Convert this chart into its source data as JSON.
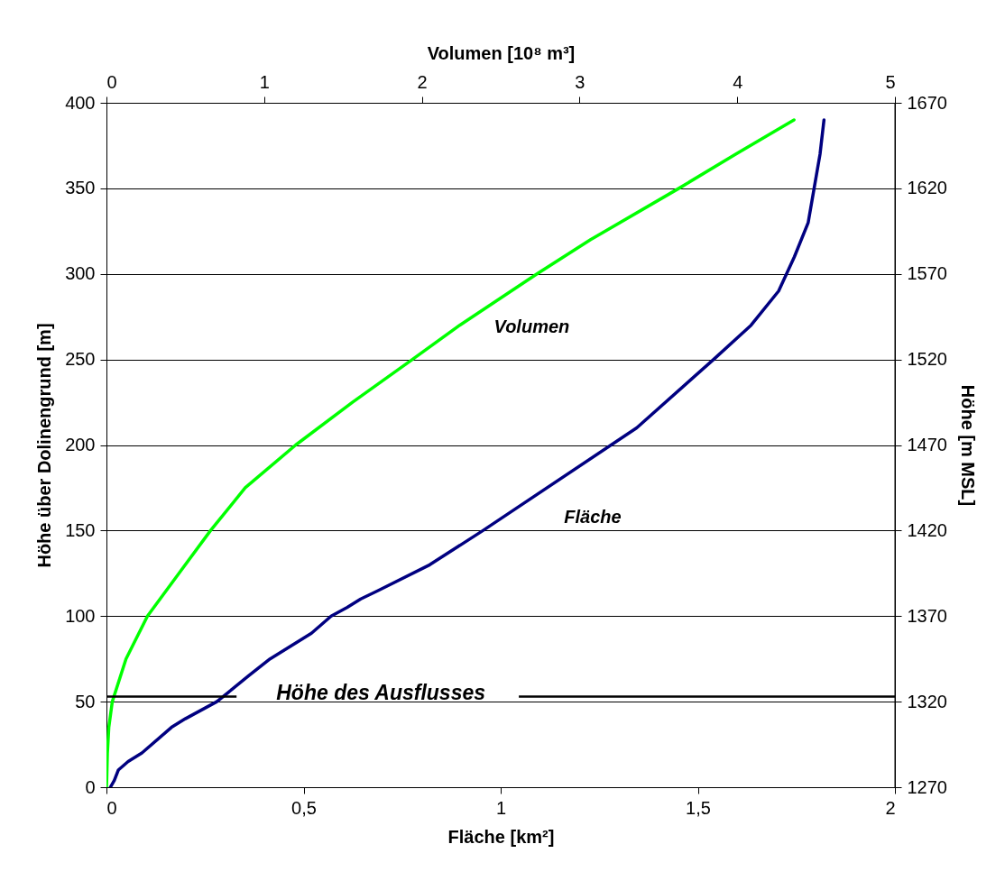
{
  "chart_data": {
    "type": "line",
    "xlabel": "Fläche [km²]",
    "x2label": "Volumen [10⁸ m³]",
    "ylabel": "Höhe über Dolinengrund [m]",
    "y2label": "Höhe [m MSL]",
    "xlim": [
      0,
      2
    ],
    "xticks": [
      0,
      {
        "value": 0.5,
        "label": "0,5"
      },
      1,
      {
        "value": 1.5,
        "label": "1,5"
      },
      2
    ],
    "x2lim": [
      0,
      5
    ],
    "x2ticks": [
      0,
      1,
      2,
      3,
      4,
      5
    ],
    "ylim": [
      0,
      400
    ],
    "yticks": [
      0,
      50,
      100,
      150,
      200,
      250,
      300,
      350,
      400
    ],
    "y2lim": [
      1270,
      1670
    ],
    "y2ticks": [
      1270,
      1320,
      1370,
      1420,
      1470,
      1520,
      1570,
      1620,
      1670
    ],
    "grid": "y",
    "line_style": "solid",
    "marker": "none",
    "series": [
      {
        "name": "Fläche",
        "color": "#000080",
        "x": [
          0.01,
          0.02,
          0.03,
          0.055,
          0.09,
          0.165,
          0.2,
          0.28,
          0.36,
          0.415,
          0.485,
          0.52,
          0.545,
          0.57,
          0.61,
          0.645,
          0.69,
          0.82,
          0.955,
          1.345,
          1.54,
          1.635,
          1.705,
          1.745,
          1.78,
          1.795,
          1.81,
          1.82
        ],
        "values": [
          0,
          4,
          10,
          15,
          20,
          35,
          40,
          50,
          65,
          75,
          85,
          90,
          95,
          100,
          105,
          110,
          115,
          130,
          150,
          210,
          250,
          270,
          290,
          310,
          330,
          350,
          370,
          390
        ]
      },
      {
        "name": "Volumen",
        "color": "#00ff00",
        "axis": "x2",
        "x": [
          0,
          0.002,
          0.006,
          0.015,
          0.037,
          0.124,
          0.26,
          0.46,
          0.66,
          0.88,
          1.2,
          1.56,
          1.94,
          2.24,
          2.73,
          3.07,
          3.63,
          3.99,
          4.36
        ],
        "values": [
          0,
          5,
          20,
          35,
          50,
          75,
          100,
          125,
          150,
          175,
          200,
          225,
          250,
          270,
          300,
          320,
          350,
          370,
          390
        ]
      }
    ],
    "ref_lines": [
      {
        "axis": "y",
        "value": 53,
        "label": "Höhe des Ausflusses",
        "color": "#000000"
      }
    ]
  }
}
